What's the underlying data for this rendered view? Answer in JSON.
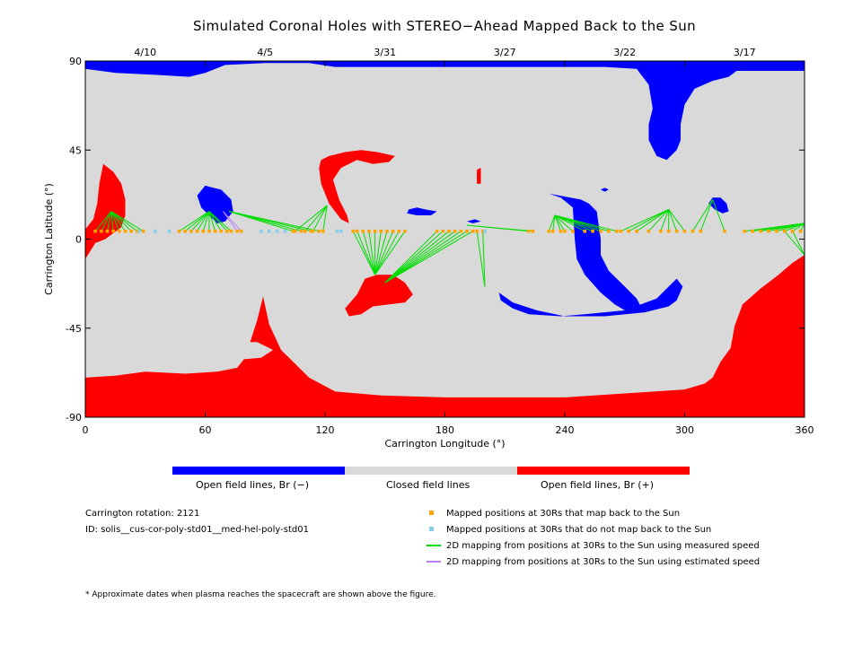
{
  "chart_data": {
    "type": "map",
    "title": "Simulated Coronal Holes with STEREO−Ahead Mapped Back to the Sun",
    "xlabel": "Carrington Longitude (°)",
    "ylabel": "Carrington Latitude (°)",
    "xlim": [
      0,
      360
    ],
    "ylim": [
      -90,
      90
    ],
    "xticks": [
      0,
      60,
      120,
      180,
      240,
      300,
      360
    ],
    "yticks": [
      90,
      45,
      0,
      -45,
      -90
    ],
    "date_ticks": [
      {
        "label": "4/10",
        "lon": 30
      },
      {
        "label": "4/5",
        "lon": 90
      },
      {
        "label": "3/31",
        "lon": 150
      },
      {
        "label": "3/27",
        "lon": 210
      },
      {
        "label": "3/22",
        "lon": 270
      },
      {
        "label": "3/17",
        "lon": 330
      }
    ],
    "colors": {
      "open_negative": "#0000ff",
      "closed": "#d9d9d9",
      "open_positive": "#ff0000",
      "mapped": "#ffa500",
      "unmapped": "#87ceeb",
      "measured_speed": "#00dd00",
      "estimated_speed": "#bf80ff"
    },
    "regions": {
      "open_negative": [
        [
          [
            0,
            90
          ],
          [
            360,
            90
          ],
          [
            360,
            85
          ],
          [
            326,
            85
          ],
          [
            322,
            82
          ],
          [
            314,
            80
          ],
          [
            305,
            76
          ],
          [
            300,
            68
          ],
          [
            298,
            58
          ],
          [
            298,
            50
          ],
          [
            296,
            45
          ],
          [
            291,
            40
          ],
          [
            286,
            42
          ],
          [
            282,
            50
          ],
          [
            282,
            58
          ],
          [
            284,
            66
          ],
          [
            282,
            78
          ],
          [
            276,
            86
          ],
          [
            260,
            87
          ],
          [
            200,
            87
          ],
          [
            170,
            87
          ],
          [
            140,
            87
          ],
          [
            125,
            87
          ],
          [
            112,
            89
          ],
          [
            90,
            89
          ],
          [
            70,
            88
          ],
          [
            60,
            84
          ],
          [
            52,
            82
          ],
          [
            35,
            83
          ],
          [
            15,
            84
          ],
          [
            0,
            86
          ]
        ],
        [
          [
            60,
            27
          ],
          [
            64,
            26
          ],
          [
            68,
            25
          ],
          [
            73,
            20
          ],
          [
            74,
            14
          ],
          [
            70,
            9
          ],
          [
            66,
            8
          ],
          [
            62,
            12
          ],
          [
            58,
            16
          ],
          [
            56,
            22
          ]
        ],
        [
          [
            232,
            23
          ],
          [
            238,
            21
          ],
          [
            244,
            16
          ],
          [
            245,
            0
          ],
          [
            246,
            -10
          ],
          [
            250,
            -18
          ],
          [
            258,
            -27
          ],
          [
            265,
            -33
          ],
          [
            270,
            -36
          ],
          [
            279,
            -36
          ],
          [
            276,
            -30
          ],
          [
            270,
            -24
          ],
          [
            262,
            -16
          ],
          [
            258,
            -8
          ],
          [
            258,
            0
          ],
          [
            256,
            14
          ],
          [
            252,
            18
          ],
          [
            248,
            20
          ]
        ],
        [
          [
            207,
            -27
          ],
          [
            214,
            -32
          ],
          [
            226,
            -36
          ],
          [
            240,
            -39
          ],
          [
            260,
            -39
          ],
          [
            280,
            -37
          ],
          [
            292,
            -34
          ],
          [
            296,
            -31
          ],
          [
            299,
            -24
          ],
          [
            296,
            -20
          ],
          [
            292,
            -24
          ],
          [
            286,
            -30
          ],
          [
            270,
            -36
          ],
          [
            250,
            -38
          ],
          [
            238,
            -39
          ],
          [
            222,
            -38
          ],
          [
            214,
            -35
          ],
          [
            208,
            -31
          ]
        ],
        [
          [
            162,
            15
          ],
          [
            166,
            16
          ],
          [
            170,
            15
          ],
          [
            176,
            14
          ],
          [
            173,
            12
          ],
          [
            166,
            12
          ],
          [
            161,
            13
          ]
        ],
        [
          [
            191,
            9
          ],
          [
            195,
            10
          ],
          [
            198,
            9
          ],
          [
            194,
            8
          ]
        ],
        [
          [
            314,
            21
          ],
          [
            318,
            21
          ],
          [
            321,
            18
          ],
          [
            322,
            14
          ],
          [
            319,
            13
          ],
          [
            315,
            15
          ],
          [
            312,
            18
          ]
        ],
        [
          [
            258,
            25
          ],
          [
            260,
            26
          ],
          [
            262,
            25
          ],
          [
            260,
            24
          ]
        ]
      ],
      "open_positive": [
        [
          [
            0,
            -90
          ],
          [
            360,
            -90
          ],
          [
            360,
            -8
          ],
          [
            354,
            -12
          ],
          [
            347,
            -18
          ],
          [
            338,
            -25
          ],
          [
            329,
            -33
          ],
          [
            325,
            -44
          ],
          [
            323,
            -55
          ],
          [
            318,
            -62
          ],
          [
            314,
            -70
          ],
          [
            310,
            -73
          ],
          [
            300,
            -76
          ],
          [
            240,
            -80
          ],
          [
            180,
            -80
          ],
          [
            148,
            -79
          ],
          [
            125,
            -77
          ],
          [
            112,
            -70
          ],
          [
            105,
            -63
          ],
          [
            98,
            -56
          ],
          [
            92,
            -43
          ],
          [
            89,
            -29
          ],
          [
            86,
            -41
          ],
          [
            80,
            -60
          ],
          [
            76,
            -65
          ],
          [
            66,
            -67
          ],
          [
            50,
            -68
          ],
          [
            30,
            -67
          ],
          [
            15,
            -69
          ],
          [
            0,
            -70
          ]
        ],
        [
          [
            9,
            38
          ],
          [
            14,
            34
          ],
          [
            18,
            28
          ],
          [
            20,
            20
          ],
          [
            20,
            12
          ],
          [
            18,
            6
          ],
          [
            14,
            3
          ],
          [
            10,
            0
          ],
          [
            5,
            -2
          ],
          [
            0,
            -10
          ],
          [
            0,
            5
          ],
          [
            4,
            10
          ],
          [
            6,
            18
          ],
          [
            7,
            28
          ]
        ],
        [
          [
            118,
            40
          ],
          [
            122,
            42
          ],
          [
            130,
            44
          ],
          [
            138,
            45
          ],
          [
            146,
            44
          ],
          [
            155,
            42
          ],
          [
            152,
            39
          ],
          [
            144,
            38
          ],
          [
            136,
            40
          ],
          [
            128,
            36
          ],
          [
            124,
            30
          ],
          [
            127,
            20
          ],
          [
            131,
            12
          ],
          [
            132,
            8
          ],
          [
            128,
            10
          ],
          [
            122,
            18
          ],
          [
            118,
            28
          ],
          [
            117,
            36
          ]
        ],
        [
          [
            130,
            -35
          ],
          [
            136,
            -28
          ],
          [
            140,
            -20
          ],
          [
            146,
            -18
          ],
          [
            154,
            -18
          ],
          [
            160,
            -22
          ],
          [
            164,
            -28
          ],
          [
            160,
            -32
          ],
          [
            152,
            -33
          ],
          [
            144,
            -34
          ],
          [
            138,
            -38
          ],
          [
            132,
            -39
          ]
        ],
        [
          [
            196,
            35
          ],
          [
            198,
            36
          ],
          [
            198,
            28
          ],
          [
            196,
            28
          ]
        ]
      ],
      "closed_islands": [
        [
          [
            70,
            -57
          ],
          [
            76,
            -52
          ],
          [
            86,
            -52
          ],
          [
            94,
            -56
          ],
          [
            88,
            -60
          ],
          [
            76,
            -61
          ]
        ]
      ]
    },
    "footpoint_groups": [
      {
        "source": [
          13,
          14
        ],
        "targets": [
          5,
          8,
          11,
          14,
          17,
          20,
          23,
          26,
          29
        ],
        "style": "measured"
      },
      {
        "source": [
          62,
          14
        ],
        "targets": [
          47,
          50,
          53,
          56,
          59,
          62,
          65,
          68,
          71,
          73
        ],
        "style": "measured"
      },
      {
        "source": [
          69,
          14
        ],
        "targets": [
          76,
          78
        ],
        "style": "estimated"
      },
      {
        "source": [
          72,
          14
        ],
        "targets": [
          104,
          108,
          113,
          117
        ],
        "style": "measured"
      },
      {
        "source": [
          121,
          17
        ],
        "targets": [
          105,
          110,
          114,
          119
        ],
        "style": "measured"
      },
      {
        "source": [
          145,
          -18
        ],
        "targets": [
          134,
          136,
          139,
          142,
          145,
          148,
          151,
          154,
          157,
          160
        ],
        "style": "measured"
      },
      {
        "source": [
          150,
          -22
        ],
        "targets": [
          176,
          179,
          182,
          185,
          188,
          191,
          194
        ],
        "style": "measured"
      },
      {
        "source": [
          191,
          7
        ],
        "targets": [
          222,
          224
        ],
        "style": "measured"
      },
      {
        "source": [
          200,
          -24
        ],
        "targets": [
          196,
          199
        ],
        "style": "measured"
      },
      {
        "source": [
          235,
          12
        ],
        "targets": [
          232,
          234,
          238,
          240,
          244,
          250,
          254,
          258,
          262,
          266
        ],
        "style": "measured"
      },
      {
        "source": [
          292,
          15
        ],
        "targets": [
          268,
          272,
          276,
          282,
          288,
          292,
          296,
          300
        ],
        "style": "measured"
      },
      {
        "source": [
          314,
          20
        ],
        "targets": [
          304,
          308,
          320
        ],
        "style": "measured"
      },
      {
        "source": [
          360,
          8
        ],
        "targets": [
          330,
          334,
          338,
          342,
          346,
          350,
          354,
          358
        ],
        "style": "measured"
      },
      {
        "source": [
          360,
          -8
        ],
        "targets": [
          354,
          350
        ],
        "style": "measured"
      }
    ],
    "unmapped_points": [
      27,
      35,
      42,
      88,
      92,
      96,
      100,
      126,
      128,
      200
    ]
  },
  "colorbar": {
    "labels": [
      "Open field lines, Br (−)",
      "Closed field lines",
      "Open field lines, Br (+)"
    ]
  },
  "info": {
    "rotation": "Carrington rotation: 2121",
    "id": "ID: solis__cus-cor-poly-std01__med-hel-poly-std01"
  },
  "legend": {
    "mapped": "Mapped positions at 30Rs that map back to the Sun",
    "unmapped": "Mapped positions at 30Rs that do not map back to the Sun",
    "measured": "2D mapping from positions at 30Rs to the Sun using measured speed",
    "estimated": "2D mapping from positions at 30Rs to the Sun using estimated speed"
  },
  "footnote": "* Approximate dates when plasma reaches the spacecraft are shown above the figure."
}
